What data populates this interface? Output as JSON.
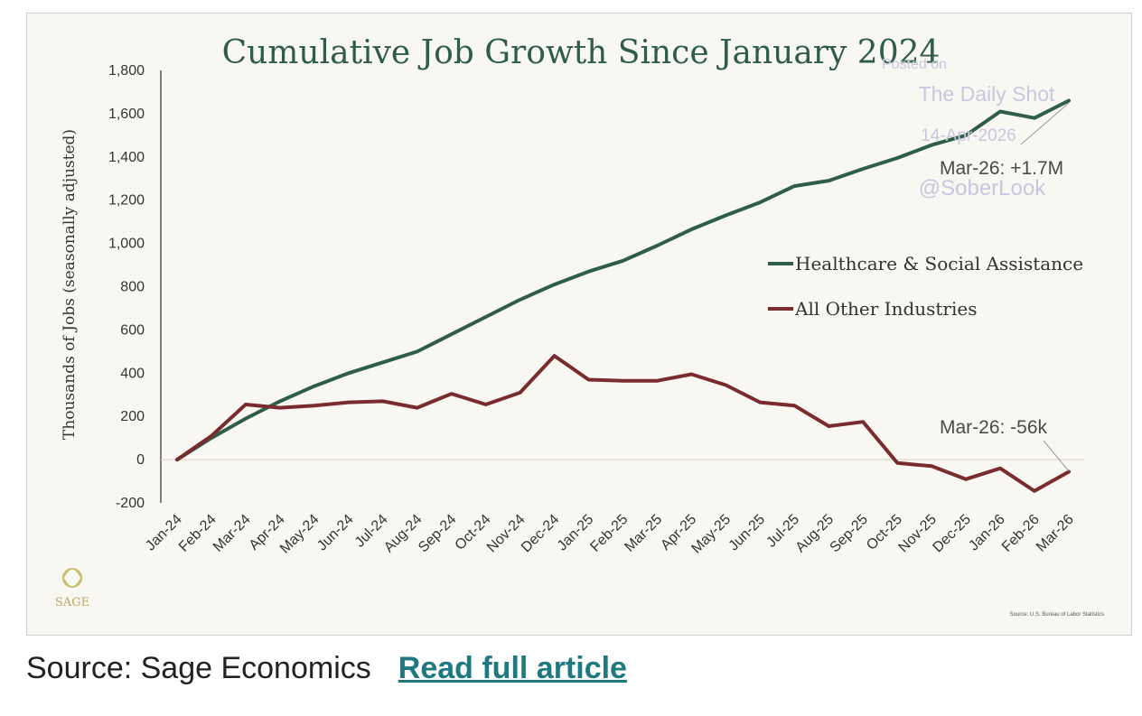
{
  "chart_data": {
    "type": "line",
    "title": "Cumulative Job Growth Since January 2024",
    "ylabel": "Thousands of Jobs (seasonally adjusted)",
    "xlabel": "",
    "ylim": [
      -200,
      1800
    ],
    "yticks": [
      1800,
      1600,
      1400,
      1200,
      1000,
      800,
      600,
      400,
      200,
      0,
      -200
    ],
    "ytick_labels": [
      "1,800",
      "1,600",
      "1,400",
      "1,200",
      "1,000",
      "800",
      "600",
      "400",
      "200",
      "0",
      "-200"
    ],
    "categories": [
      "Jan-24",
      "Feb-24",
      "Mar-24",
      "Apr-24",
      "May-24",
      "Jun-24",
      "Jul-24",
      "Aug-24",
      "Sep-24",
      "Oct-24",
      "Nov-24",
      "Dec-24",
      "Jan-25",
      "Feb-25",
      "Mar-25",
      "Apr-25",
      "May-25",
      "Jun-25",
      "Jul-25",
      "Aug-25",
      "Sep-25",
      "Oct-25",
      "Nov-25",
      "Dec-25",
      "Jan-26",
      "Feb-26",
      "Mar-26"
    ],
    "series": [
      {
        "name": "Healthcare & Social Assistance",
        "color": "#2f5e48",
        "values": [
          0,
          100,
          190,
          270,
          340,
          400,
          450,
          500,
          580,
          660,
          740,
          810,
          870,
          920,
          990,
          1065,
          1130,
          1190,
          1265,
          1290,
          1345,
          1395,
          1455,
          1500,
          1610,
          1580,
          1660
        ]
      },
      {
        "name": "All Other Industries",
        "color": "#7a2b2e",
        "values": [
          0,
          110,
          255,
          240,
          250,
          265,
          270,
          240,
          305,
          255,
          310,
          480,
          370,
          365,
          365,
          395,
          345,
          265,
          250,
          155,
          175,
          -15,
          -30,
          -90,
          -40,
          -145,
          -56
        ]
      }
    ],
    "legend_position": "right-middle",
    "grid": false,
    "annotations": [
      {
        "text": "Mar-26: +1.7M",
        "series": 0,
        "point": 26
      },
      {
        "text": "Mar-26: -56k",
        "series": 1,
        "point": 26
      }
    ],
    "source_note": "Source: U.S. Bureau of Labor Statistics"
  },
  "watermark": {
    "line1": "Posted on",
    "line2": "The Daily Shot",
    "line3": "14-Apr-2026",
    "line4": "@SoberLook"
  },
  "logo": {
    "text": "SAGE"
  },
  "footer": {
    "source": "Source: Sage Economics",
    "link": "Read full article"
  }
}
